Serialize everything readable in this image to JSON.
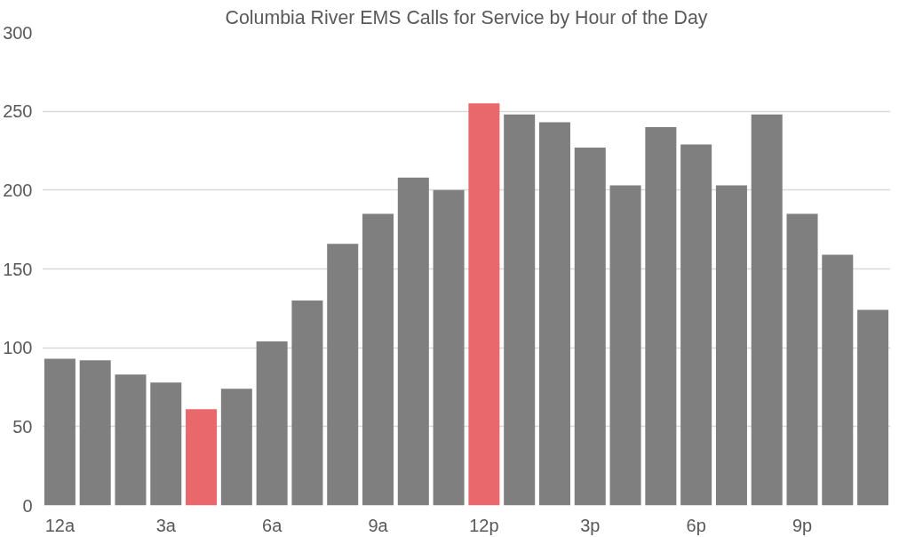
{
  "chart_data": {
    "type": "bar",
    "title": "Columbia River EMS Calls for Service by Hour of the Day",
    "categories": [
      "12a",
      null,
      null,
      "3a",
      null,
      null,
      "6a",
      null,
      null,
      "9a",
      null,
      null,
      "12p",
      null,
      null,
      "3p",
      null,
      null,
      "6p",
      null,
      null,
      "9p",
      null,
      null
    ],
    "values": [
      93,
      92,
      83,
      78,
      61,
      74,
      104,
      130,
      166,
      185,
      208,
      200,
      255,
      248,
      243,
      227,
      203,
      240,
      229,
      203,
      248,
      185,
      159,
      124
    ],
    "colors": [
      "#7f7f7f",
      "#7f7f7f",
      "#7f7f7f",
      "#7f7f7f",
      "#e9686b",
      "#7f7f7f",
      "#7f7f7f",
      "#7f7f7f",
      "#7f7f7f",
      "#7f7f7f",
      "#7f7f7f",
      "#7f7f7f",
      "#e9686b",
      "#7f7f7f",
      "#7f7f7f",
      "#7f7f7f",
      "#7f7f7f",
      "#7f7f7f",
      "#7f7f7f",
      "#7f7f7f",
      "#7f7f7f",
      "#7f7f7f",
      "#7f7f7f",
      "#7f7f7f"
    ],
    "ylim": [
      0,
      300
    ],
    "yticks": [
      0,
      50,
      100,
      150,
      200,
      250,
      300
    ],
    "grid": "y"
  }
}
